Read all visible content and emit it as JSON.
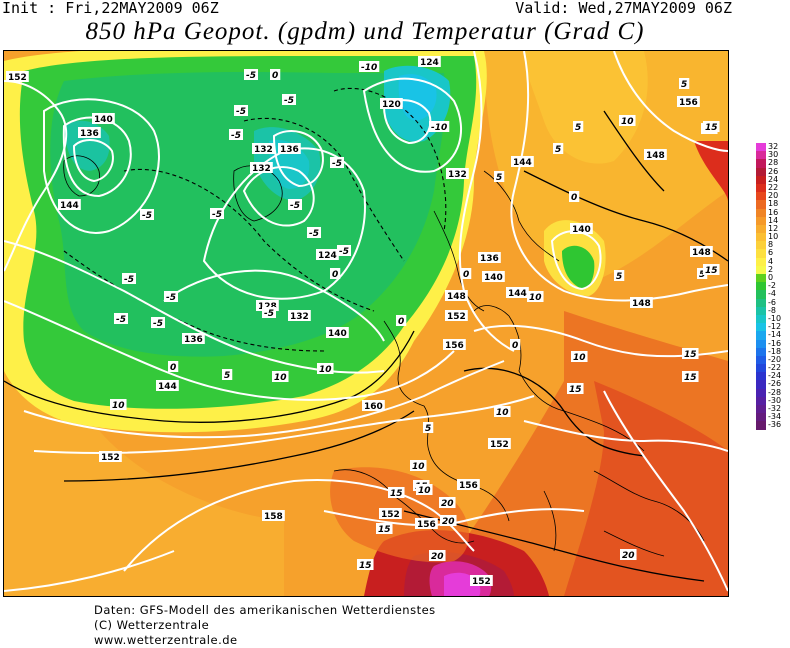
{
  "header": {
    "init": "Init : Fri,22MAY2009 06Z",
    "valid": "Valid: Wed,27MAY2009 06Z",
    "title": "850 hPa Geopot. (gpdm) und Temperatur (Grad C)"
  },
  "legend": {
    "items": [
      {
        "value": "32",
        "color": "#e53cd9"
      },
      {
        "value": "30",
        "color": "#d92a9b"
      },
      {
        "value": "28",
        "color": "#c2185b"
      },
      {
        "value": "26",
        "color": "#b31b36"
      },
      {
        "value": "24",
        "color": "#c81f1f"
      },
      {
        "value": "22",
        "color": "#dc2d1c"
      },
      {
        "value": "20",
        "color": "#e8481e"
      },
      {
        "value": "18",
        "color": "#ec6a22"
      },
      {
        "value": "16",
        "color": "#f08526"
      },
      {
        "value": "14",
        "color": "#f59a2a"
      },
      {
        "value": "12",
        "color": "#f8ad2f"
      },
      {
        "value": "10",
        "color": "#fbbf33"
      },
      {
        "value": "8",
        "color": "#fcd03a"
      },
      {
        "value": "6",
        "color": "#fde040"
      },
      {
        "value": "4",
        "color": "#fef048"
      },
      {
        "value": "2",
        "color": "#f7fa4c"
      },
      {
        "value": "0",
        "color": "#5ed11e"
      },
      {
        "value": "-2",
        "color": "#2fc632"
      },
      {
        "value": "-4",
        "color": "#23c05c"
      },
      {
        "value": "-6",
        "color": "#1fc083"
      },
      {
        "value": "-8",
        "color": "#1bc3a7"
      },
      {
        "value": "-10",
        "color": "#19c6c8"
      },
      {
        "value": "-12",
        "color": "#19c3e6"
      },
      {
        "value": "-14",
        "color": "#1aa8ef"
      },
      {
        "value": "-16",
        "color": "#1c8ff0"
      },
      {
        "value": "-18",
        "color": "#1d74ec"
      },
      {
        "value": "-20",
        "color": "#1f5ce6"
      },
      {
        "value": "-22",
        "color": "#2147dc"
      },
      {
        "value": "-24",
        "color": "#2a34cf"
      },
      {
        "value": "-26",
        "color": "#3b28c0"
      },
      {
        "value": "-28",
        "color": "#4a22b2"
      },
      {
        "value": "-30",
        "color": "#561fa2"
      },
      {
        "value": "-32",
        "color": "#5f1d90"
      },
      {
        "value": "-34",
        "color": "#641b7e"
      },
      {
        "value": "-36",
        "color": "#661a6c"
      }
    ]
  },
  "map": {
    "geopotential_labels": [
      "152",
      "140",
      "136",
      "144",
      "132",
      "136",
      "132",
      "124",
      "120",
      "124",
      "128",
      "132",
      "136",
      "140",
      "144",
      "132",
      "136",
      "140",
      "144",
      "148",
      "156",
      "148",
      "140",
      "148",
      "152",
      "156",
      "144",
      "148",
      "160",
      "152",
      "152",
      "156",
      "152",
      "156",
      "158",
      "152"
    ],
    "temperature_labels": [
      "0",
      "-5",
      "-10",
      "-5",
      "-5",
      "-10",
      "-5",
      "-5",
      "-5",
      "-5",
      "-5",
      "-5",
      "-5",
      "0",
      "0",
      "-5",
      "-5",
      "-5",
      "-5",
      "0",
      "0",
      "0",
      "5",
      "-5",
      "5",
      "0",
      "5",
      "5",
      "10",
      "5",
      "10",
      "10",
      "10",
      "5",
      "10",
      "10",
      "15",
      "15",
      "15",
      "15",
      "15",
      "10",
      "5",
      "10",
      "15",
      "20",
      "20",
      "20",
      "20",
      "15",
      "5",
      "10",
      "10",
      "15",
      "15"
    ]
  },
  "footer": {
    "line1": "Daten: GFS-Modell des amerikanischen Wetterdienstes",
    "line2": "(C) Wetterzentrale",
    "line3": "www.wetterzentrale.de"
  }
}
